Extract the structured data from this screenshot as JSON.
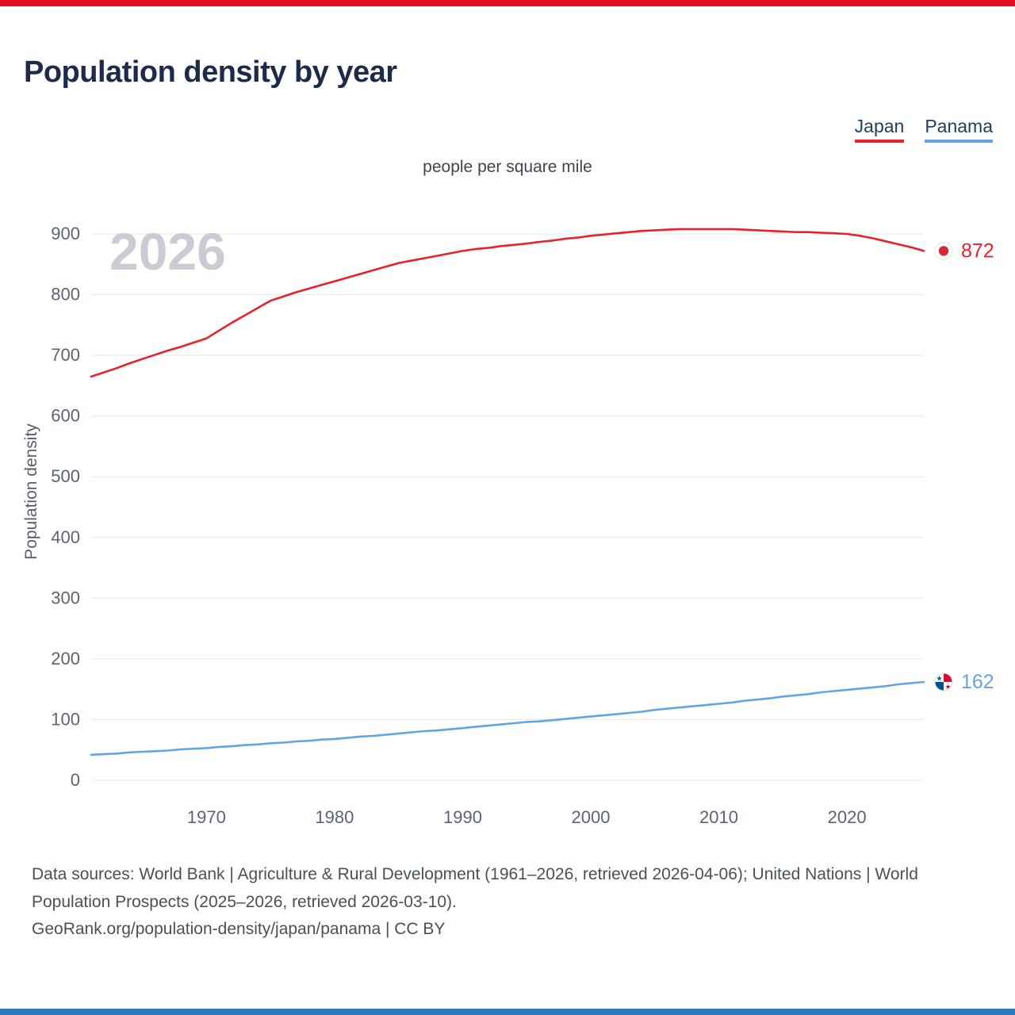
{
  "page": {
    "top_bar_color": "#e40c22",
    "bottom_bar_color": "#3179bd"
  },
  "header": {
    "title": "Population density by year"
  },
  "legend": {
    "japan": {
      "label": "Japan",
      "color": "#e8212b"
    },
    "panama": {
      "label": "Panama",
      "color": "#63a5e3"
    }
  },
  "chart_data": {
    "type": "line",
    "title": "Population density by year",
    "unit_label": "people per square mile",
    "ylabel": "Population density",
    "xlabel": "",
    "watermark": "2026",
    "grid": "horizontal",
    "legend_position": "top-right",
    "xlim": [
      1961,
      2026
    ],
    "ylim": [
      0,
      940
    ],
    "x_ticks": [
      1970,
      1980,
      1990,
      2000,
      2010,
      2020
    ],
    "y_ticks": [
      0,
      100,
      200,
      300,
      400,
      500,
      600,
      700,
      800,
      900
    ],
    "series": [
      {
        "name": "Japan",
        "flag": "japan",
        "color": "#e8212b",
        "x_start": 1961,
        "x_step": 1,
        "end_label": "872",
        "values": [
          665,
          672,
          679,
          687,
          694,
          701,
          708,
          714,
          721,
          728,
          741,
          754,
          766,
          778,
          790,
          797,
          804,
          810,
          816,
          822,
          828,
          834,
          840,
          846,
          852,
          856,
          860,
          864,
          868,
          872,
          875,
          877,
          880,
          882,
          884,
          887,
          889,
          892,
          894,
          897,
          899,
          901,
          903,
          905,
          906,
          907,
          908,
          908,
          908,
          908,
          908,
          907,
          906,
          905,
          904,
          903,
          903,
          902,
          901,
          900,
          897,
          893,
          888,
          883,
          878,
          872
        ]
      },
      {
        "name": "Panama",
        "flag": "panama",
        "color": "#63a5e3",
        "x_start": 1961,
        "x_step": 1,
        "end_label": "162",
        "values": [
          42,
          43,
          44,
          46,
          47,
          48,
          49,
          51,
          52,
          53,
          55,
          56,
          58,
          59,
          61,
          62,
          64,
          65,
          67,
          68,
          70,
          72,
          73,
          75,
          77,
          79,
          81,
          82,
          84,
          86,
          88,
          90,
          92,
          94,
          96,
          97,
          99,
          101,
          103,
          105,
          107,
          109,
          111,
          113,
          116,
          118,
          120,
          122,
          124,
          126,
          128,
          131,
          133,
          135,
          138,
          140,
          142,
          145,
          147,
          149,
          151,
          153,
          155,
          158,
          160,
          162
        ]
      }
    ]
  },
  "footer": {
    "sources": "Data sources: World Bank | Agriculture & Rural Development (1961–2026, retrieved 2026-04-06); United Nations | World Population Prospects (2025–2026, retrieved 2026-03-10).",
    "attribution": "GeoRank.org/population-density/japan/panama | CC BY"
  }
}
